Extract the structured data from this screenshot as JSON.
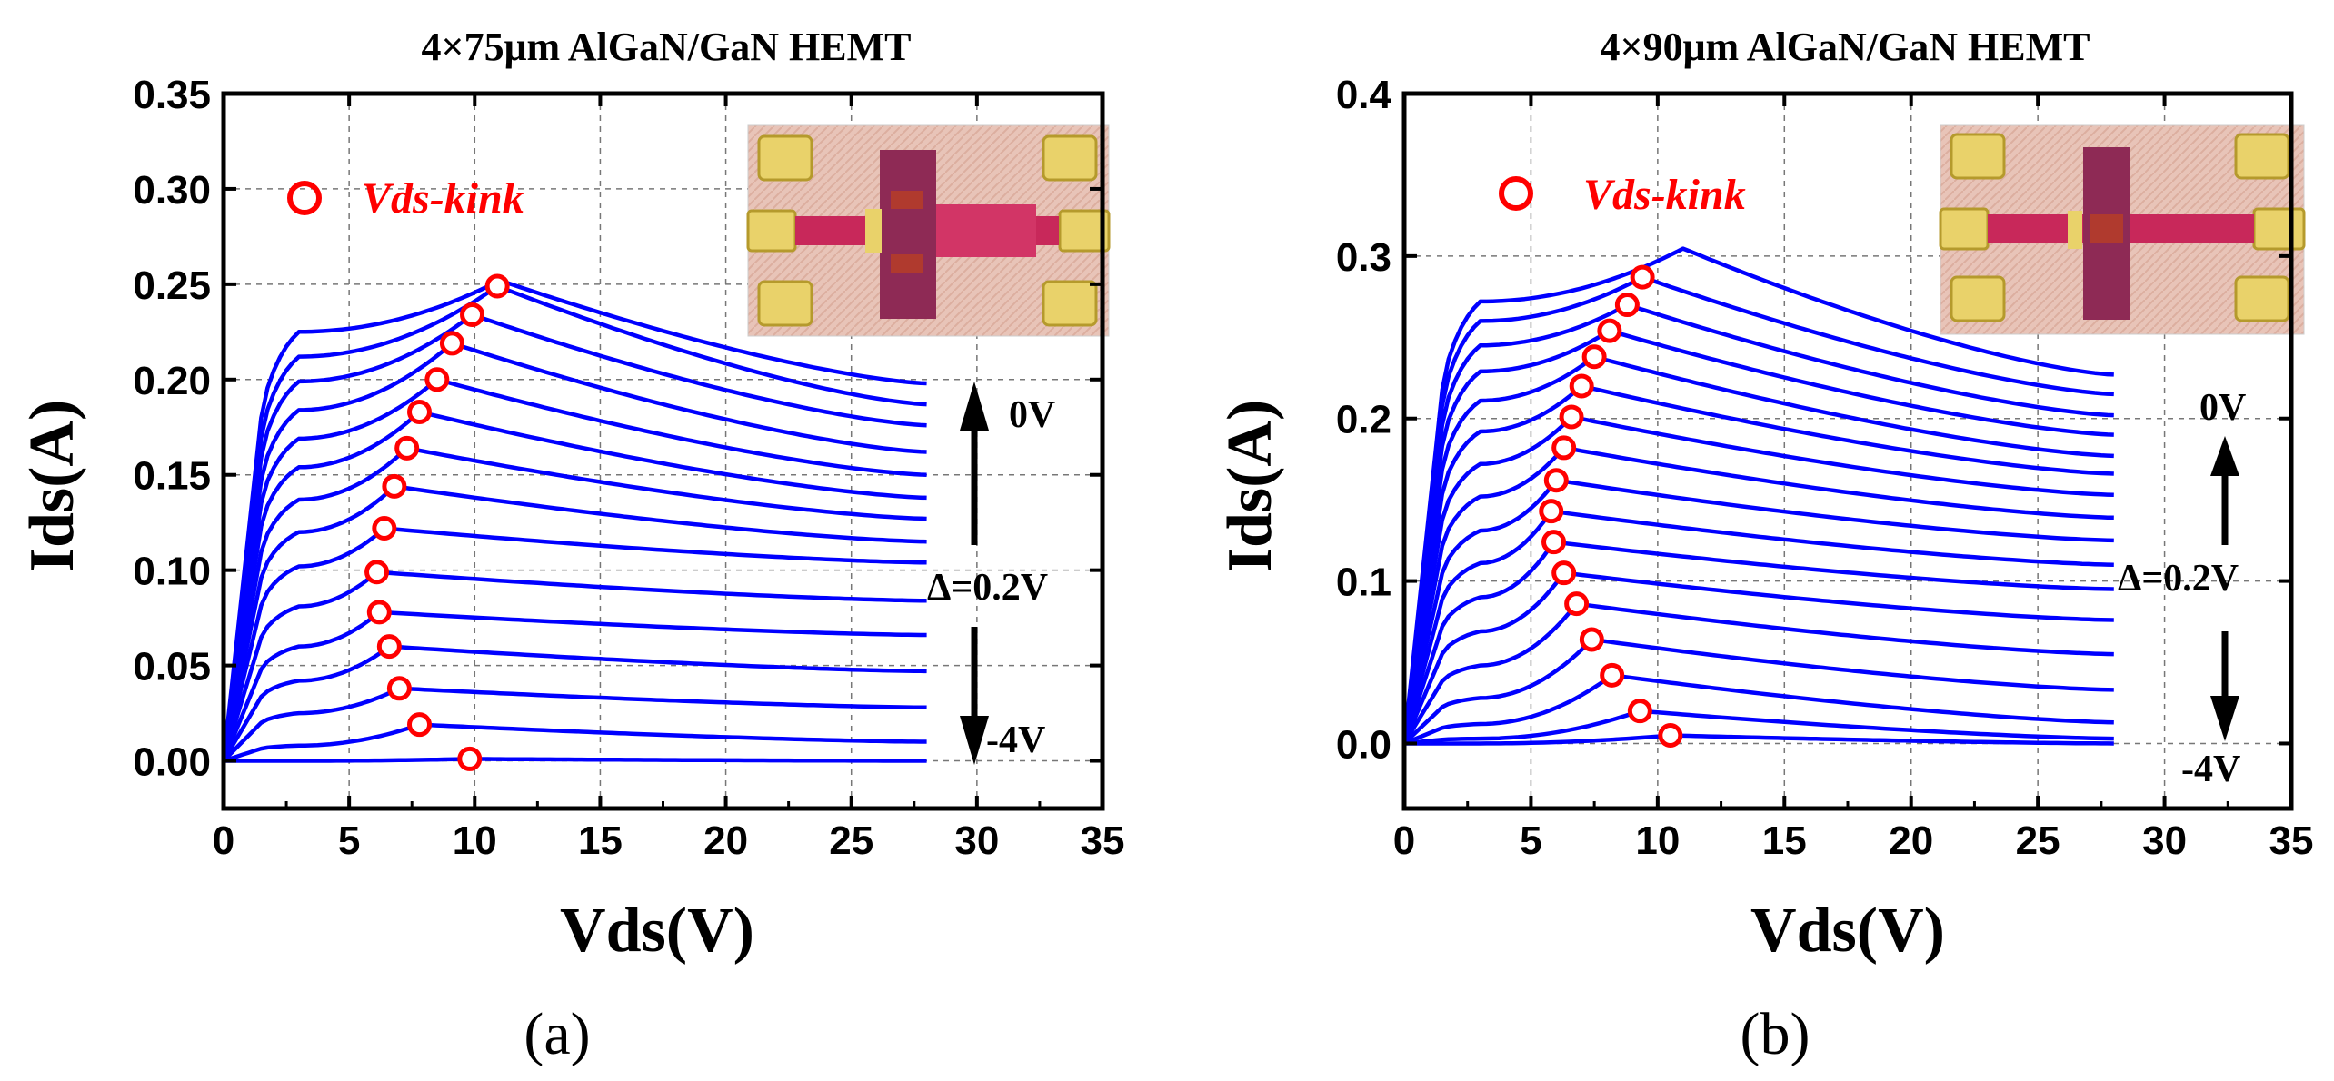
{
  "figure": {
    "labels": [
      "(a)",
      "(b)"
    ]
  },
  "chart_data": [
    {
      "type": "line",
      "title": "4×75μm AlGaN/GaN HEMT",
      "xlabel": "Vds(V)",
      "ylabel": "Ids(A)",
      "xlim": [
        0,
        35
      ],
      "ylim": [
        -0.025,
        0.35
      ],
      "xticks": [
        0,
        5,
        10,
        15,
        20,
        25,
        30,
        35
      ],
      "xtick_labels": [
        "0",
        "5",
        "10",
        "15",
        "20",
        "25",
        "30",
        "35"
      ],
      "yticks": [
        0,
        0.05,
        0.1,
        0.15,
        0.2,
        0.25,
        0.3,
        0.35
      ],
      "ytick_labels": [
        "0.00",
        "0.05",
        "0.10",
        "0.15",
        "0.20",
        "0.25",
        "0.30",
        "0.35"
      ],
      "grid": true,
      "legend": {
        "label": "Vds-kink",
        "position": "top-left"
      },
      "annotations": {
        "top": "0V",
        "step": "Δ=0.2V",
        "bottom": "-4V"
      },
      "x_end": 28,
      "series_color": "#0000ff",
      "marker_color": "#ff0000",
      "series": [
        {
          "plateau": 0.0,
          "tail": 0.0,
          "kink_x": 9.8,
          "kink_y": 0.001
        },
        {
          "plateau": 0.008,
          "tail": 0.01,
          "kink_x": 7.8,
          "kink_y": 0.019
        },
        {
          "plateau": 0.025,
          "tail": 0.028,
          "kink_x": 7.0,
          "kink_y": 0.038
        },
        {
          "plateau": 0.042,
          "tail": 0.047,
          "kink_x": 6.6,
          "kink_y": 0.06
        },
        {
          "plateau": 0.06,
          "tail": 0.066,
          "kink_x": 6.2,
          "kink_y": 0.078
        },
        {
          "plateau": 0.081,
          "tail": 0.084,
          "kink_x": 6.1,
          "kink_y": 0.099
        },
        {
          "plateau": 0.102,
          "tail": 0.104,
          "kink_x": 6.4,
          "kink_y": 0.122
        },
        {
          "plateau": 0.12,
          "tail": 0.115,
          "kink_x": 6.8,
          "kink_y": 0.144
        },
        {
          "plateau": 0.137,
          "tail": 0.127,
          "kink_x": 7.3,
          "kink_y": 0.164
        },
        {
          "plateau": 0.154,
          "tail": 0.138,
          "kink_x": 7.8,
          "kink_y": 0.183
        },
        {
          "plateau": 0.169,
          "tail": 0.15,
          "kink_x": 8.5,
          "kink_y": 0.2
        },
        {
          "plateau": 0.184,
          "tail": 0.162,
          "kink_x": 9.1,
          "kink_y": 0.219
        },
        {
          "plateau": 0.199,
          "tail": 0.176,
          "kink_x": 9.9,
          "kink_y": 0.234
        },
        {
          "plateau": 0.212,
          "tail": 0.187,
          "kink_x": 10.9,
          "kink_y": 0.249
        },
        {
          "plateau": 0.225,
          "tail": 0.198,
          "kink_x": null,
          "kink_y": null
        }
      ]
    },
    {
      "type": "line",
      "title": "4×90μm AlGaN/GaN HEMT",
      "xlabel": "Vds(V)",
      "ylabel": "Ids(A)",
      "xlim": [
        0,
        35
      ],
      "ylim": [
        -0.04,
        0.4
      ],
      "xticks": [
        0,
        5,
        10,
        15,
        20,
        25,
        30,
        35
      ],
      "xtick_labels": [
        "0",
        "5",
        "10",
        "15",
        "20",
        "25",
        "30",
        "35"
      ],
      "yticks": [
        0,
        0.1,
        0.2,
        0.3,
        0.4
      ],
      "ytick_labels": [
        "0.0",
        "0.1",
        "0.2",
        "0.3",
        "0.4"
      ],
      "grid": true,
      "legend": {
        "label": "Vds-kink",
        "position": "top-left"
      },
      "annotations": {
        "top": "0V",
        "step": "Δ=0.2V",
        "bottom": "-4V"
      },
      "x_end": 28,
      "series_color": "#0000ff",
      "marker_color": "#ff0000",
      "series": [
        {
          "plateau": 0.0,
          "tail": 0.0,
          "kink_x": 10.5,
          "kink_y": 0.005
        },
        {
          "plateau": 0.003,
          "tail": 0.003,
          "kink_x": 9.3,
          "kink_y": 0.02
        },
        {
          "plateau": 0.012,
          "tail": 0.013,
          "kink_x": 8.2,
          "kink_y": 0.042
        },
        {
          "plateau": 0.028,
          "tail": 0.033,
          "kink_x": 7.4,
          "kink_y": 0.064
        },
        {
          "plateau": 0.048,
          "tail": 0.055,
          "kink_x": 6.8,
          "kink_y": 0.086
        },
        {
          "plateau": 0.069,
          "tail": 0.076,
          "kink_x": 6.3,
          "kink_y": 0.105
        },
        {
          "plateau": 0.09,
          "tail": 0.095,
          "kink_x": 5.9,
          "kink_y": 0.124
        },
        {
          "plateau": 0.111,
          "tail": 0.11,
          "kink_x": 5.8,
          "kink_y": 0.143
        },
        {
          "plateau": 0.131,
          "tail": 0.125,
          "kink_x": 6.0,
          "kink_y": 0.162
        },
        {
          "plateau": 0.152,
          "tail": 0.139,
          "kink_x": 6.3,
          "kink_y": 0.182
        },
        {
          "plateau": 0.172,
          "tail": 0.153,
          "kink_x": 6.6,
          "kink_y": 0.201
        },
        {
          "plateau": 0.192,
          "tail": 0.166,
          "kink_x": 7.0,
          "kink_y": 0.22
        },
        {
          "plateau": 0.211,
          "tail": 0.177,
          "kink_x": 7.5,
          "kink_y": 0.238
        },
        {
          "plateau": 0.229,
          "tail": 0.19,
          "kink_x": 8.1,
          "kink_y": 0.254
        },
        {
          "plateau": 0.245,
          "tail": 0.202,
          "kink_x": 8.8,
          "kink_y": 0.27
        },
        {
          "plateau": 0.26,
          "tail": 0.215,
          "kink_x": 9.4,
          "kink_y": 0.287
        },
        {
          "plateau": 0.272,
          "tail": 0.227,
          "kink_x": null,
          "kink_y": null
        }
      ]
    }
  ]
}
